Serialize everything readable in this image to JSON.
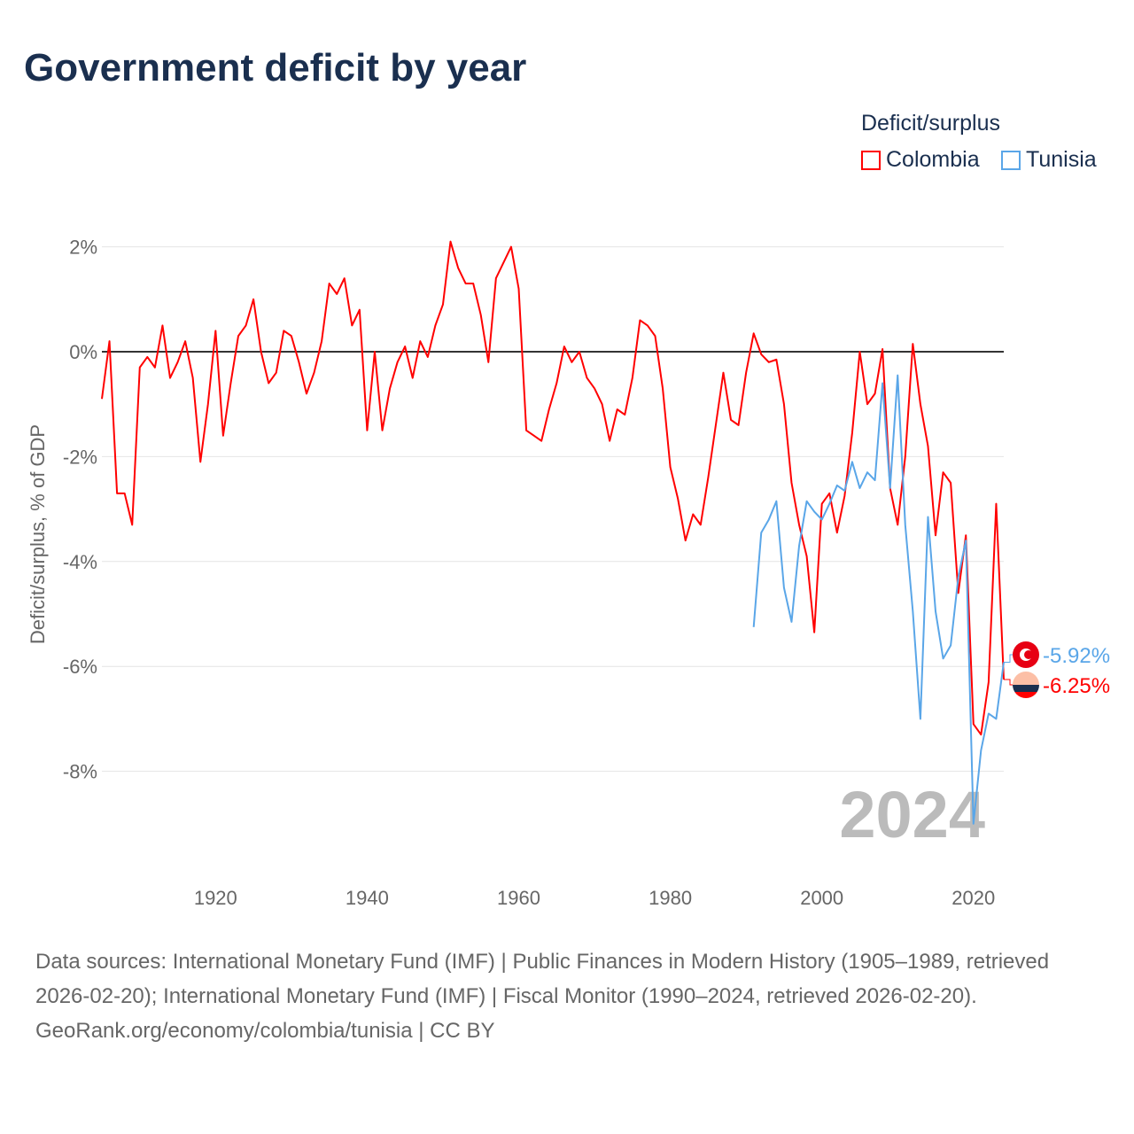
{
  "title": "Government deficit by year",
  "legend_title": "Deficit/surplus",
  "colors": {
    "Colombia": "#ff0000",
    "Tunisia": "#5aa6e8"
  },
  "source_text": "Data sources: International Monetary Fund (IMF) | Public Finances in Modern History (1905–1989, retrieved 2026-02-20); International Monetary Fund (IMF) | Fiscal Monitor (1990–2024, retrieved 2026-02-20).",
  "credit": "GeoRank.org/economy/colombia/tunisia | CC BY",
  "chart_data": {
    "type": "line",
    "title": "Government deficit by year",
    "xlabel": "",
    "ylabel": "Deficit/surplus, % of GDP",
    "xlim": [
      1905,
      2024
    ],
    "ylim": [
      -10,
      2.6
    ],
    "xticks": [
      1920,
      1940,
      1960,
      1980,
      2000,
      2020
    ],
    "yticks": [
      2,
      0,
      -2,
      -4,
      -6,
      -8
    ],
    "ytick_labels": [
      "2%",
      "0%",
      "-2%",
      "-4%",
      "-6%",
      "-8%"
    ],
    "year_watermark": "2024",
    "series": [
      {
        "name": "Colombia",
        "start": 1905,
        "end_label": "-6.25%",
        "flag": "colombia-flag-icon",
        "values": [
          -0.9,
          0.2,
          -2.7,
          -2.7,
          -3.3,
          -0.3,
          -0.1,
          -0.3,
          0.5,
          -0.5,
          -0.2,
          0.2,
          -0.5,
          -2.1,
          -1.0,
          0.4,
          -1.6,
          -0.6,
          0.3,
          0.5,
          1.0,
          0,
          -0.6,
          -0.4,
          0.4,
          0.3,
          -0.2,
          -0.8,
          -0.4,
          0.2,
          1.3,
          1.1,
          1.4,
          0.5,
          0.8,
          -1.5,
          0,
          -1.5,
          -0.7,
          -0.2,
          0.1,
          -0.5,
          0.2,
          -0.1,
          0.5,
          0.9,
          2.1,
          1.6,
          1.3,
          1.3,
          0.7,
          -0.2,
          1.4,
          1.7,
          2.0,
          1.2,
          -1.5,
          -1.6,
          -1.7,
          -1.1,
          -0.6,
          0.1,
          -0.2,
          0,
          -0.5,
          -0.7,
          -1.0,
          -1.7,
          -1.1,
          -1.2,
          -0.5,
          0.6,
          0.5,
          0.3,
          -0.7,
          -2.2,
          -2.8,
          -3.6,
          -3.1,
          -3.3,
          -2.4,
          -1.4,
          -0.4,
          -1.3,
          -1.4,
          -0.4,
          0.35,
          -0.05,
          -0.2,
          -0.15,
          -1.0,
          -2.5,
          -3.3,
          -3.9,
          -5.35,
          -2.9,
          -2.7,
          -3.45,
          -2.75,
          -1.55,
          0,
          -1.0,
          -0.8,
          0.05,
          -2.6,
          -3.3,
          -2.0,
          0.15,
          -1.0,
          -1.8,
          -3.5,
          -2.3,
          -2.5,
          -4.6,
          -3.5,
          -7.1,
          -7.3,
          -6.3,
          -2.9,
          -6.25
        ]
      },
      {
        "name": "Tunisia",
        "start": 1991,
        "end_label": "-5.92%",
        "flag": "tunisia-flag-icon",
        "values": [
          -5.25,
          -3.45,
          -3.2,
          -2.85,
          -4.5,
          -5.15,
          -3.7,
          -2.85,
          -3.05,
          -3.2,
          -2.9,
          -2.55,
          -2.65,
          -2.1,
          -2.6,
          -2.3,
          -2.45,
          -0.6,
          -2.6,
          -0.45,
          -3.3,
          -4.95,
          -7.0,
          -3.15,
          -4.95,
          -5.85,
          -5.6,
          -4.3,
          -3.6,
          -9.0,
          -7.6,
          -6.9,
          -7.0,
          -5.92
        ]
      }
    ]
  }
}
